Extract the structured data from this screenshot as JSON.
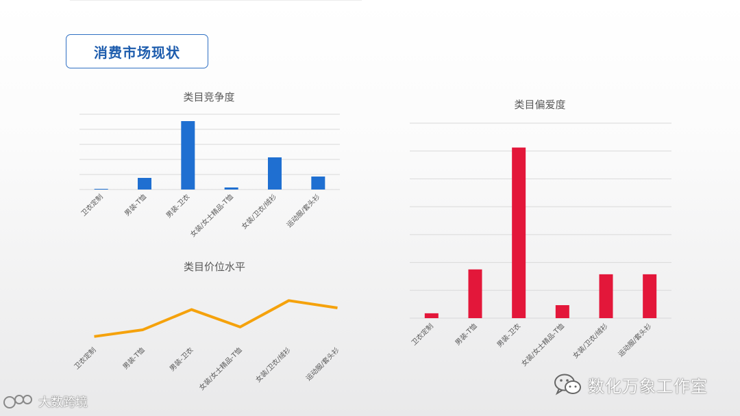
{
  "header": {
    "title": "消费市场现状"
  },
  "chart_data": [
    {
      "type": "bar",
      "title": "类目竞争度",
      "categories": [
        "卫衣定制",
        "男装-T恤",
        "男装-卫衣",
        "女装/女士精品-T恤",
        "女装/卫衣/绒衫",
        "运动服/套头衫"
      ],
      "values": [
        1,
        17,
        100,
        3,
        47,
        19
      ],
      "ylim": [
        0,
        110
      ],
      "grid": true,
      "color": "#1f6fd1"
    },
    {
      "type": "line",
      "title": "类目价位水平",
      "categories": [
        "卫衣定制",
        "男装-T恤",
        "男装-卫衣",
        "女装/女士精品-T恤",
        "女装/卫衣/绒衫",
        "运动服/套头衫"
      ],
      "values": [
        10,
        22,
        58,
        27,
        74,
        61
      ],
      "ylim": [
        0,
        100
      ],
      "grid": true,
      "color": "#f5a20c"
    },
    {
      "type": "bar",
      "title": "类目偏爱度",
      "categories": [
        "卫衣定制",
        "男装-T恤",
        "男装-卫衣",
        "女装/女士精品-T恤",
        "女装/卫衣/绒衫",
        "运动服/套头衫"
      ],
      "values": [
        3,
        30,
        105,
        8,
        27,
        27
      ],
      "ylim": [
        0,
        120
      ],
      "grid": true,
      "color": "#e3173a"
    }
  ],
  "watermarks": {
    "right": "数化万象工作室",
    "left": "大数跨境"
  }
}
